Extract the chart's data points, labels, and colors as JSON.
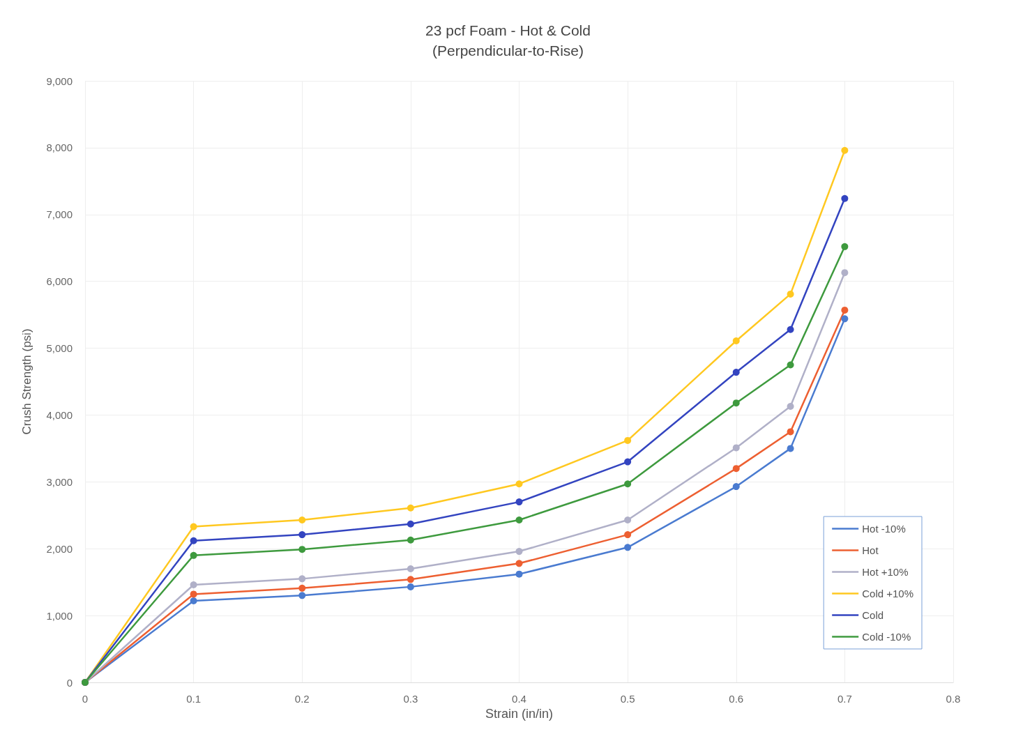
{
  "chart_data": {
    "type": "line",
    "title": "23 pcf Foam - Hot & Cold",
    "subtitle": "(Perpendicular-to-Rise)",
    "xlabel": "Strain (in/in)",
    "ylabel": "Crush Strength (psi)",
    "x": [
      0,
      0.1,
      0.2,
      0.3,
      0.4,
      0.5,
      0.6,
      0.65,
      0.7
    ],
    "series": [
      {
        "name": "Hot -10%",
        "color": "#4a7bd0",
        "values": [
          0,
          1220,
          1300,
          1430,
          1620,
          2020,
          2930,
          3500,
          5440
        ]
      },
      {
        "name": "Hot",
        "color": "#ed5f31",
        "values": [
          0,
          1320,
          1410,
          1540,
          1780,
          2210,
          3200,
          3750,
          5570
        ]
      },
      {
        "name": "Hot +10%",
        "color": "#b0b0c8",
        "values": [
          0,
          1460,
          1550,
          1700,
          1960,
          2430,
          3510,
          4130,
          6130
        ]
      },
      {
        "name": "Cold +10%",
        "color": "#ffc820",
        "values": [
          0,
          2330,
          2430,
          2610,
          2970,
          3620,
          5110,
          5810,
          7960
        ]
      },
      {
        "name": "Cold",
        "color": "#3344c0",
        "values": [
          0,
          2120,
          2210,
          2370,
          2700,
          3300,
          4640,
          5280,
          7240
        ]
      },
      {
        "name": "Cold -10%",
        "color": "#3e9a3e",
        "values": [
          0,
          1900,
          1990,
          2130,
          2430,
          2970,
          4180,
          4750,
          6520
        ]
      }
    ],
    "xlim": [
      0,
      0.8
    ],
    "xticks": [
      0,
      0.1,
      0.2,
      0.3,
      0.4,
      0.5,
      0.6,
      0.7,
      0.8
    ],
    "ylim": [
      0,
      9000
    ],
    "yticks": [
      {
        "value": 0,
        "label": "0"
      },
      {
        "value": 1000,
        "label": "1,000"
      },
      {
        "value": 2000,
        "label": "2,000"
      },
      {
        "value": 3000,
        "label": "3,000"
      },
      {
        "value": 4000,
        "label": "4,000"
      },
      {
        "value": 5000,
        "label": "5,000"
      },
      {
        "value": 6000,
        "label": "6,000"
      },
      {
        "value": 7000,
        "label": "7,000"
      },
      {
        "value": 8000,
        "label": "8,000"
      },
      {
        "value": 9000,
        "label": "9,000"
      }
    ],
    "grid": true,
    "legend": "bottom right",
    "marker": "circle",
    "line_style": "solid"
  }
}
